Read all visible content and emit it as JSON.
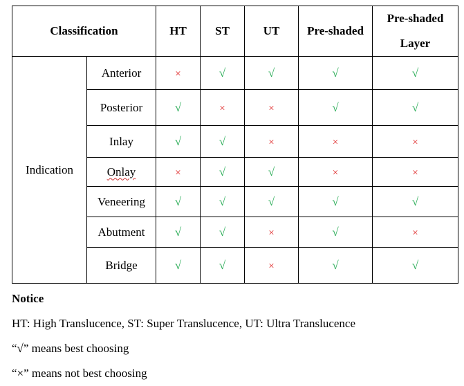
{
  "table": {
    "header": {
      "classification": "Classification",
      "columns": [
        "HT",
        "ST",
        "UT",
        "Pre-shaded",
        "Pre-shaded Layer"
      ]
    },
    "group_label": "Indication",
    "rows": [
      {
        "label": "Anterior",
        "cells": [
          "×",
          "√",
          "√",
          "√",
          "√"
        ]
      },
      {
        "label": "Posterior",
        "cells": [
          "√",
          "×",
          "×",
          "√",
          "√"
        ]
      },
      {
        "label": "Inlay",
        "cells": [
          "√",
          "√",
          "×",
          "×",
          "×"
        ]
      },
      {
        "label": "Onlay",
        "cells": [
          "×",
          "√",
          "√",
          "×",
          "×"
        ]
      },
      {
        "label": "Veneering",
        "cells": [
          "√",
          "√",
          "√",
          "√",
          "√"
        ]
      },
      {
        "label": "Abutment",
        "cells": [
          "√",
          "√",
          "×",
          "√",
          "×"
        ]
      },
      {
        "label": "Bridge",
        "cells": [
          "√",
          "√",
          "×",
          "√",
          "√"
        ]
      }
    ]
  },
  "notice": {
    "title": "Notice",
    "lines": [
      "HT: High Translucence, ST: Super Translucence, UT: Ultra Translucence",
      "“√” means best choosing",
      "“×” means not best choosing"
    ]
  },
  "colors": {
    "check": "#2eae5a",
    "cross": "#e03030"
  }
}
